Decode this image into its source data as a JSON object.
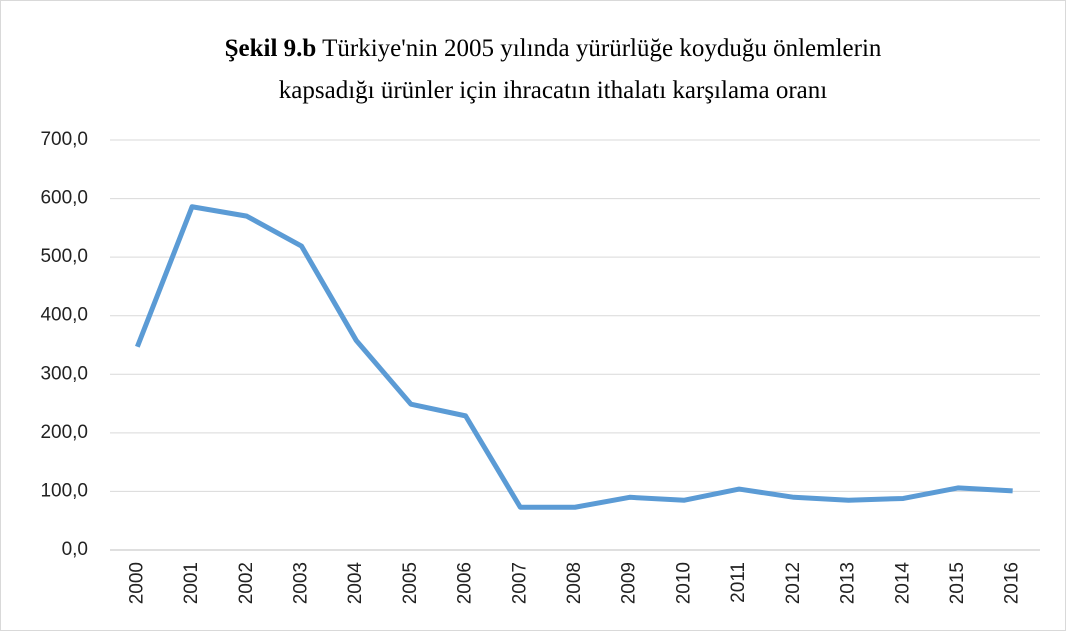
{
  "chart_data": {
    "type": "line",
    "title_label": "Şekil 9.b",
    "title": "Türkiye'nin 2005 yılında yürürlüğe koyduğu önlemlerin kapsadığı ürünler için ihracatın ithalatı karşılama oranı",
    "categories": [
      "2000",
      "2001",
      "2002",
      "2003",
      "2004",
      "2005",
      "2006",
      "2007",
      "2008",
      "2009",
      "2010",
      "2011",
      "2012",
      "2013",
      "2014",
      "2015",
      "2016"
    ],
    "values": [
      347,
      586,
      570,
      519,
      358,
      249,
      229,
      73,
      73,
      90,
      85,
      104,
      90,
      85,
      88,
      106,
      101
    ],
    "color": "#5b9bd5",
    "ylim": [
      0,
      700
    ],
    "yticks": [
      {
        "value": 0,
        "label": "0,0"
      },
      {
        "value": 100,
        "label": "100,0"
      },
      {
        "value": 200,
        "label": "200,0"
      },
      {
        "value": 300,
        "label": "300,0"
      },
      {
        "value": 400,
        "label": "400,0"
      },
      {
        "value": 500,
        "label": "500,0"
      },
      {
        "value": 600,
        "label": "600,0"
      },
      {
        "value": 700,
        "label": "700,0"
      }
    ],
    "grid": true
  }
}
